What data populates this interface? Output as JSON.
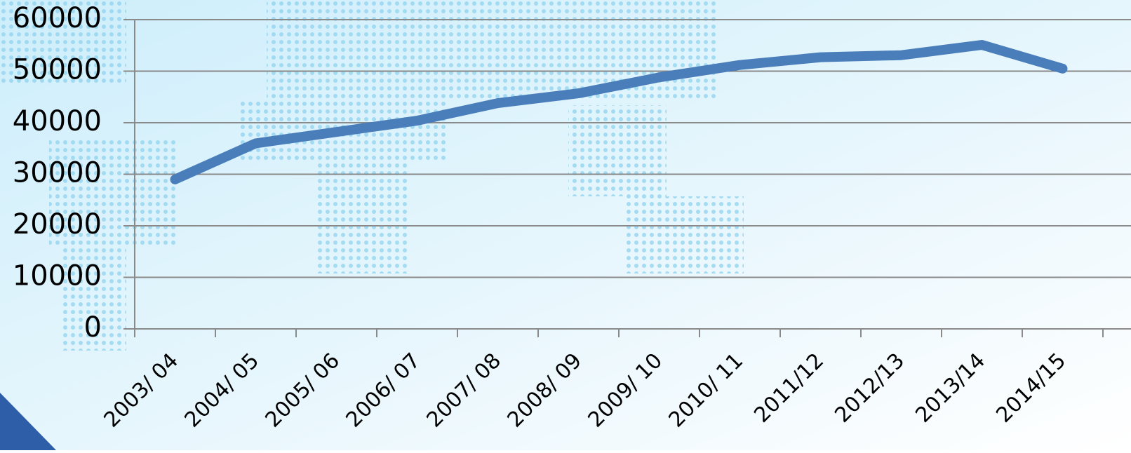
{
  "chart_data": {
    "type": "line",
    "categories": [
      "2003/ 04",
      "2004/ 05",
      "2005/ 06",
      "2006/ 07",
      "2007/ 08",
      "2008/ 09",
      "2009/ 10",
      "2010/ 11",
      "2011/12",
      "2012/13",
      "2013/14",
      "2014/15"
    ],
    "series": [
      {
        "name": null,
        "color": "#4a7ebb",
        "values": [
          29000,
          36000,
          38200,
          40400,
          43800,
          45700,
          48800,
          51200,
          52700,
          53100,
          55100,
          50500
        ]
      }
    ],
    "ylim": [
      0,
      60000
    ],
    "yticks": [
      0,
      10000,
      20000,
      30000,
      40000,
      50000,
      60000
    ],
    "grid": true
  }
}
